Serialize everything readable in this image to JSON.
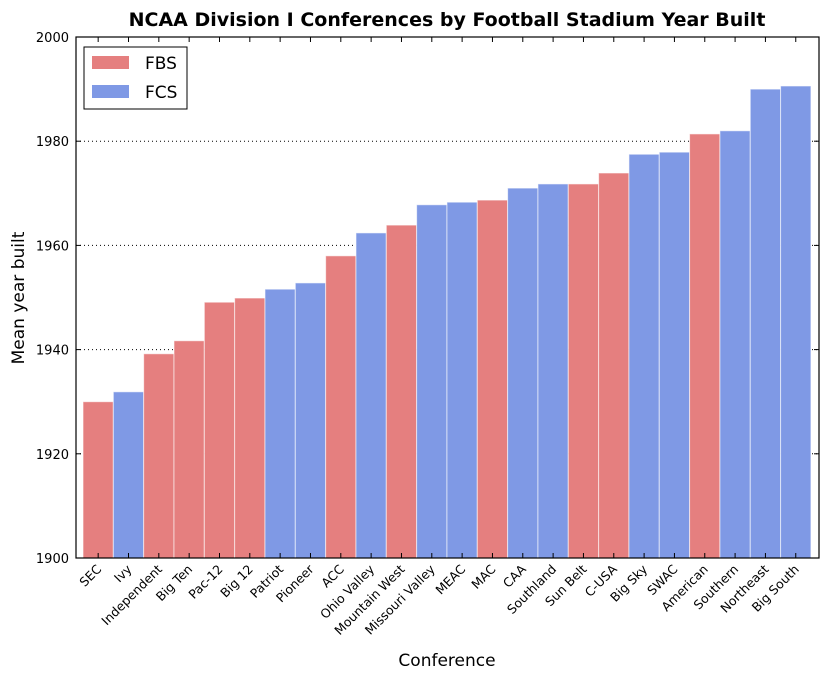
{
  "chart_data": {
    "type": "bar",
    "title": "NCAA Division I Conferences by Football Stadium Year Built",
    "xlabel": "Conference",
    "ylabel": "Mean year built",
    "ylim": [
      1900,
      2000
    ],
    "yticks": [
      1900,
      1920,
      1940,
      1960,
      1980,
      2000
    ],
    "grid": "horizontal dotted",
    "legend_position": "top-left",
    "colors": {
      "FBS": "#e57f7f",
      "FCS": "#7f99e5"
    },
    "categories": [
      "SEC",
      "Ivy",
      "Independent",
      "Big Ten",
      "Pac-12",
      "Big 12",
      "Patriot",
      "Pioneer",
      "ACC",
      "Ohio Valley",
      "Mountain West",
      "Missouri Valley",
      "MEAC",
      "MAC",
      "CAA",
      "Southland",
      "Sun Belt",
      "C-USA",
      "Big Sky",
      "SWAC",
      "American",
      "Southern",
      "Northeast",
      "Big South"
    ],
    "division": [
      "FBS",
      "FCS",
      "FBS",
      "FBS",
      "FBS",
      "FBS",
      "FCS",
      "FCS",
      "FBS",
      "FCS",
      "FBS",
      "FCS",
      "FCS",
      "FBS",
      "FCS",
      "FCS",
      "FBS",
      "FBS",
      "FCS",
      "FCS",
      "FBS",
      "FCS",
      "FCS",
      "FCS"
    ],
    "values": [
      1930.0,
      1931.9,
      1939.2,
      1941.7,
      1949.1,
      1949.9,
      1951.6,
      1952.8,
      1958.0,
      1962.4,
      1963.9,
      1967.8,
      1968.3,
      1968.7,
      1971.0,
      1971.8,
      1971.8,
      1973.9,
      1977.5,
      1977.9,
      1981.4,
      1982.0,
      1990.0,
      1990.6
    ],
    "legend": [
      "FBS",
      "FCS"
    ]
  }
}
